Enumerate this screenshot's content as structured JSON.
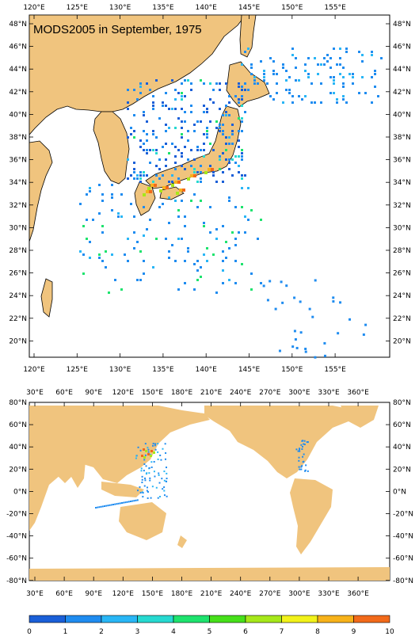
{
  "map_top": {
    "title": "MODS2005 in September, 1975",
    "lon_labels": [
      "120°E",
      "125°E",
      "130°E",
      "135°E",
      "140°E",
      "145°E",
      "150°E",
      "155°E"
    ],
    "lat_labels": [
      "48°N",
      "46°N",
      "44°N",
      "42°N",
      "40°N",
      "38°N",
      "36°N",
      "34°N",
      "32°N",
      "30°N",
      "28°N",
      "26°N",
      "24°N",
      "22°N",
      "20°N"
    ],
    "colors": {
      "land": "#f0c47e",
      "ocean": "#ffffff",
      "coast": "#000000"
    }
  },
  "map_bottom": {
    "lon_labels": [
      "30°E",
      "60°E",
      "90°E",
      "120°E",
      "150°E",
      "180°E",
      "210°E",
      "240°E",
      "270°E",
      "300°E",
      "330°E",
      "360°E"
    ],
    "lat_labels": [
      "80°N",
      "60°N",
      "40°N",
      "20°N",
      "0°N",
      "-20°N",
      "-40°N",
      "-60°N",
      "-80°N"
    ]
  },
  "colorbar": {
    "labels": [
      "0",
      "1",
      "2",
      "3",
      "4",
      "5",
      "6",
      "7",
      "8",
      "9",
      "10"
    ],
    "colors": [
      "#1a5fd8",
      "#1f8cf0",
      "#29b6f6",
      "#26d9d0",
      "#1ee36e",
      "#46e01a",
      "#a6e81a",
      "#f2f21a",
      "#f7b21a",
      "#f26a1a"
    ]
  }
}
